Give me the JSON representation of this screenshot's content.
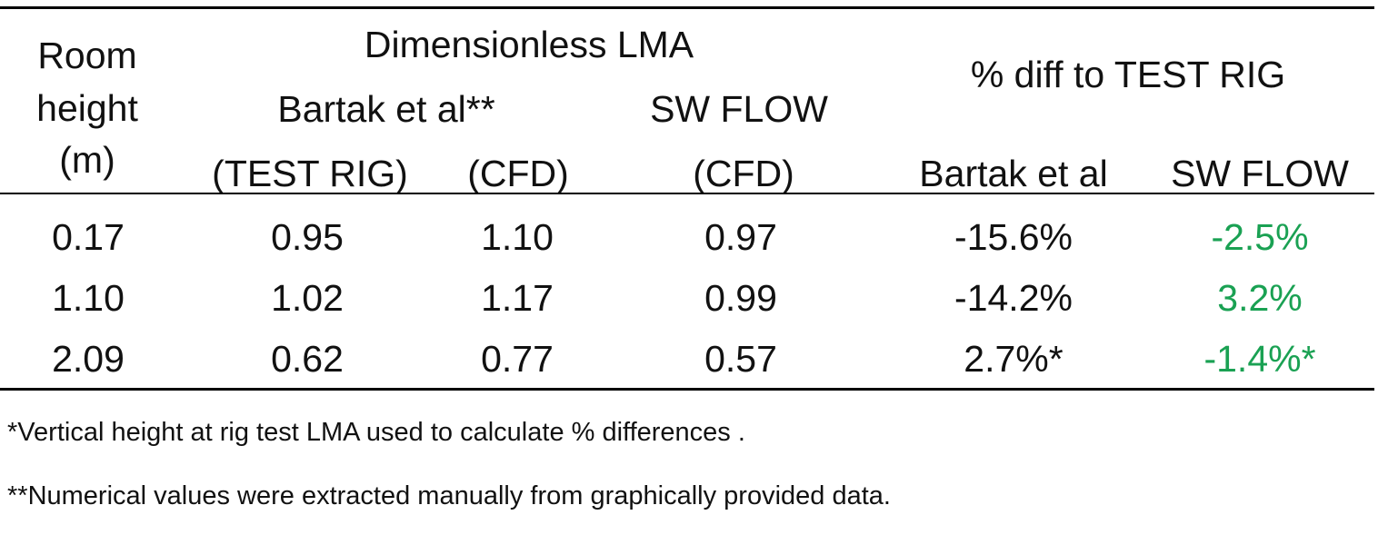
{
  "table": {
    "header": {
      "room_height_line1": "Room",
      "room_height_line2": "height",
      "room_height_line3": "(m)",
      "group_lma": "Dimensionless LMA",
      "bartak": "Bartak et al**",
      "swflow": "SW FLOW",
      "test_rig": "(TEST RIG)",
      "cfd1": "(CFD)",
      "cfd2": "(CFD)",
      "group_diff": "% diff to TEST RIG",
      "diff_bartak": "Bartak et al",
      "diff_swflow": "SW FLOW"
    },
    "rows": [
      {
        "height": "0.17",
        "test_rig": "0.95",
        "bartak_cfd": "1.10",
        "swflow_cfd": "0.97",
        "diff_bartak": "-15.6%",
        "diff_swflow": "-2.5%"
      },
      {
        "height": "1.10",
        "test_rig": "1.02",
        "bartak_cfd": "1.17",
        "swflow_cfd": "0.99",
        "diff_bartak": "-14.2%",
        "diff_swflow": "3.2%"
      },
      {
        "height": "2.09",
        "test_rig": "0.62",
        "bartak_cfd": "0.77",
        "swflow_cfd": "0.57",
        "diff_bartak": "2.7%*",
        "diff_swflow": "-1.4%*"
      }
    ]
  },
  "notes": {
    "note1": "*Vertical height at rig test LMA used to calculate % differences .",
    "note2": "**Numerical values were extracted manually from graphically provided data."
  },
  "colors": {
    "highlight": "#1aa153",
    "rule": "#000000"
  }
}
